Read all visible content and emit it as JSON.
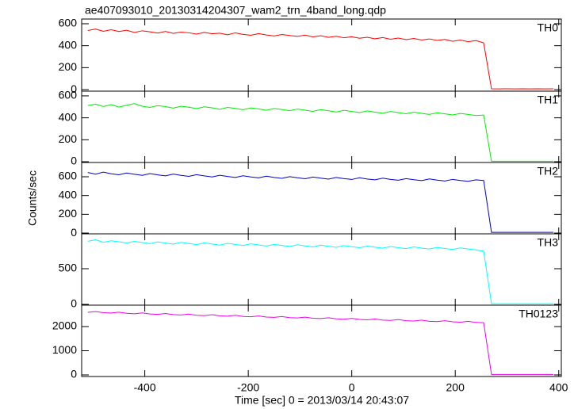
{
  "title": "ae407093010_20130314204307_wam2_trn_4band_long.qdp",
  "xlabel": "Time [sec] 0 = 2013/03/14 20:43:07",
  "ylabel": "Counts/sec",
  "chart_data": [
    {
      "type": "line",
      "xlim": [
        -522,
        405
      ],
      "xticks": [
        -400,
        -200,
        0,
        200,
        400
      ],
      "ylim": [
        -14,
        643
      ],
      "yticks": [
        0,
        200,
        400,
        600
      ],
      "x": [
        -510,
        -495,
        -480,
        -465,
        -450,
        -435,
        -420,
        -405,
        -390,
        -375,
        -360,
        -345,
        -330,
        -315,
        -300,
        -285,
        -270,
        -255,
        -240,
        -225,
        -210,
        -195,
        -180,
        -165,
        -150,
        -135,
        -120,
        -105,
        -90,
        -75,
        -60,
        -45,
        -30,
        -15,
        0,
        15,
        30,
        45,
        60,
        75,
        90,
        105,
        120,
        135,
        150,
        165,
        180,
        195,
        210,
        225,
        240,
        255,
        270,
        285,
        300,
        315,
        330,
        345,
        360,
        375,
        390
      ],
      "series": [
        {
          "name": "TH0",
          "color": "#ff0000",
          "values": [
            538,
            552,
            531,
            545,
            529,
            541,
            520,
            536,
            527,
            515,
            530,
            512,
            524,
            518,
            506,
            521,
            509,
            514,
            500,
            517,
            503,
            495,
            510,
            498,
            489,
            502,
            493,
            485,
            497,
            480,
            491,
            476,
            486,
            472,
            481,
            468,
            477,
            463,
            474,
            459,
            470,
            455,
            466,
            452,
            462,
            448,
            457,
            440,
            452,
            436,
            447,
            425,
            8,
            7,
            8,
            7,
            8,
            7,
            8,
            7,
            8
          ]
        }
      ]
    },
    {
      "type": "line",
      "xlim": [
        -522,
        405
      ],
      "xticks": [
        -400,
        -200,
        0,
        200,
        400
      ],
      "ylim": [
        -7,
        643
      ],
      "yticks": [
        0,
        200,
        400,
        600
      ],
      "x": [
        -510,
        -495,
        -480,
        -465,
        -450,
        -435,
        -420,
        -405,
        -390,
        -375,
        -360,
        -345,
        -330,
        -315,
        -300,
        -285,
        -270,
        -255,
        -240,
        -225,
        -210,
        -195,
        -180,
        -165,
        -150,
        -135,
        -120,
        -105,
        -90,
        -75,
        -60,
        -45,
        -30,
        -15,
        0,
        15,
        30,
        45,
        60,
        75,
        90,
        105,
        120,
        135,
        150,
        165,
        180,
        195,
        210,
        225,
        240,
        255,
        270,
        285,
        300,
        315,
        330,
        345,
        360,
        375,
        390
      ],
      "series": [
        {
          "name": "TH1",
          "color": "#00ee00",
          "values": [
            512,
            525,
            503,
            520,
            498,
            515,
            530,
            506,
            495,
            511,
            502,
            489,
            506,
            497,
            484,
            500,
            491,
            478,
            495,
            486,
            474,
            490,
            481,
            469,
            485,
            476,
            465,
            480,
            470,
            459,
            475,
            464,
            453,
            469,
            458,
            448,
            463,
            452,
            442,
            458,
            447,
            437,
            452,
            441,
            431,
            446,
            436,
            426,
            440,
            431,
            421,
            425,
            5,
            5,
            5,
            5,
            5,
            5,
            5,
            5,
            5
          ]
        }
      ]
    },
    {
      "type": "line",
      "xlim": [
        -522,
        405
      ],
      "xticks": [
        -400,
        -200,
        0,
        200,
        400
      ],
      "ylim": [
        -8,
        752
      ],
      "yticks": [
        0,
        200,
        400,
        600
      ],
      "x": [
        -510,
        -495,
        -480,
        -465,
        -450,
        -435,
        -420,
        -405,
        -390,
        -375,
        -360,
        -345,
        -330,
        -315,
        -300,
        -285,
        -270,
        -255,
        -240,
        -225,
        -210,
        -195,
        -180,
        -165,
        -150,
        -135,
        -120,
        -105,
        -90,
        -75,
        -60,
        -45,
        -30,
        -15,
        0,
        15,
        30,
        45,
        60,
        75,
        90,
        105,
        120,
        135,
        150,
        165,
        180,
        195,
        210,
        225,
        240,
        255,
        270,
        285,
        300,
        315,
        330,
        345,
        360,
        375,
        390
      ],
      "series": [
        {
          "name": "TH2",
          "color": "#0000cc",
          "values": [
            645,
            628,
            650,
            632,
            621,
            640,
            626,
            615,
            634,
            620,
            610,
            628,
            615,
            604,
            622,
            609,
            598,
            616,
            603,
            593,
            611,
            598,
            588,
            606,
            593,
            583,
            601,
            589,
            579,
            597,
            585,
            575,
            593,
            580,
            571,
            589,
            576,
            567,
            585,
            572,
            563,
            580,
            568,
            559,
            577,
            564,
            555,
            572,
            560,
            551,
            567,
            560,
            8,
            8,
            8,
            8,
            8,
            8,
            8,
            8,
            8
          ]
        }
      ]
    },
    {
      "type": "line",
      "xlim": [
        -522,
        405
      ],
      "xticks": [
        -400,
        -200,
        0,
        200,
        400
      ],
      "ylim": [
        -11,
        989
      ],
      "yticks": [
        0,
        500
      ],
      "x": [
        -510,
        -495,
        -480,
        -465,
        -450,
        -435,
        -420,
        -405,
        -390,
        -375,
        -360,
        -345,
        -330,
        -315,
        -300,
        -285,
        -270,
        -255,
        -240,
        -225,
        -210,
        -195,
        -180,
        -165,
        -150,
        -135,
        -120,
        -105,
        -90,
        -75,
        -60,
        -45,
        -30,
        -15,
        0,
        15,
        30,
        45,
        60,
        75,
        90,
        105,
        120,
        135,
        150,
        165,
        180,
        195,
        210,
        225,
        240,
        255,
        270,
        285,
        300,
        315,
        330,
        345,
        360,
        375,
        390
      ],
      "series": [
        {
          "name": "TH3",
          "color": "#00ffff",
          "values": [
            885,
            905,
            870,
            892,
            878,
            861,
            884,
            868,
            852,
            876,
            860,
            845,
            869,
            853,
            838,
            862,
            846,
            831,
            855,
            840,
            825,
            849,
            833,
            818,
            842,
            827,
            812,
            836,
            820,
            806,
            830,
            814,
            800,
            823,
            808,
            794,
            817,
            801,
            788,
            811,
            795,
            782,
            805,
            789,
            776,
            799,
            783,
            770,
            792,
            777,
            764,
            745,
            10,
            10,
            10,
            10,
            10,
            10,
            10,
            10,
            10
          ]
        }
      ]
    },
    {
      "type": "line",
      "xlim": [
        -522,
        405
      ],
      "xticks": [
        -400,
        -200,
        0,
        200,
        400
      ],
      "ylim": [
        -66,
        2885
      ],
      "yticks": [
        0,
        1000,
        2000
      ],
      "x": [
        -510,
        -495,
        -480,
        -465,
        -450,
        -435,
        -420,
        -405,
        -390,
        -375,
        -360,
        -345,
        -330,
        -315,
        -300,
        -285,
        -270,
        -255,
        -240,
        -225,
        -210,
        -195,
        -180,
        -165,
        -150,
        -135,
        -120,
        -105,
        -90,
        -75,
        -60,
        -45,
        -30,
        -15,
        0,
        15,
        30,
        45,
        60,
        75,
        90,
        105,
        120,
        135,
        150,
        165,
        180,
        195,
        210,
        225,
        240,
        255,
        270,
        285,
        300,
        315,
        330,
        345,
        360,
        375,
        390
      ],
      "series": [
        {
          "name": "TH0123",
          "color": "#ee00ee",
          "values": [
            2590,
            2620,
            2575,
            2560,
            2595,
            2548,
            2530,
            2566,
            2520,
            2505,
            2540,
            2495,
            2480,
            2515,
            2468,
            2455,
            2490,
            2443,
            2430,
            2465,
            2418,
            2405,
            2440,
            2395,
            2380,
            2415,
            2368,
            2355,
            2390,
            2343,
            2330,
            2365,
            2318,
            2305,
            2340,
            2293,
            2280,
            2315,
            2268,
            2255,
            2290,
            2243,
            2230,
            2265,
            2218,
            2205,
            2240,
            2195,
            2180,
            2215,
            2170,
            2160,
            20,
            20,
            20,
            20,
            20,
            20,
            20,
            20,
            20
          ]
        }
      ]
    }
  ]
}
